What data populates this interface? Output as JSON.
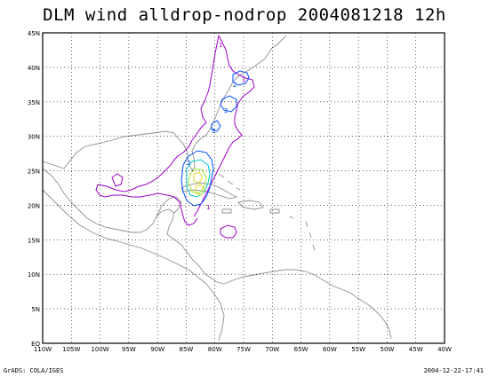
{
  "title": "DLM wind alldrop-nodrop 2004081218 12h",
  "footer": {
    "left": "GrADS: COLA/IGES",
    "right": "2004-12-22-17:41"
  },
  "axes": {
    "x_ticks": [
      "110W",
      "105W",
      "100W",
      "95W",
      "90W",
      "85W",
      "80W",
      "75W",
      "70W",
      "65W",
      "60W",
      "55W",
      "50W",
      "45W",
      "40W"
    ],
    "y_ticks": [
      "EQ",
      "5N",
      "10N",
      "15N",
      "20N",
      "25N",
      "30N",
      "35N",
      "40N",
      "45N"
    ],
    "x_range": [
      -110,
      -40
    ],
    "y_range": [
      0,
      45
    ]
  },
  "contours": {
    "labels": [
      "1",
      "2",
      "1",
      "2",
      "2",
      "1",
      "2"
    ],
    "colors": {
      "level1": "#a000c8",
      "level2": "#0050ff",
      "level3": "#00c8c8",
      "level4": "#a0e632",
      "level5": "#e6dc32",
      "coast": "#909090",
      "grid": "#000000"
    }
  }
}
